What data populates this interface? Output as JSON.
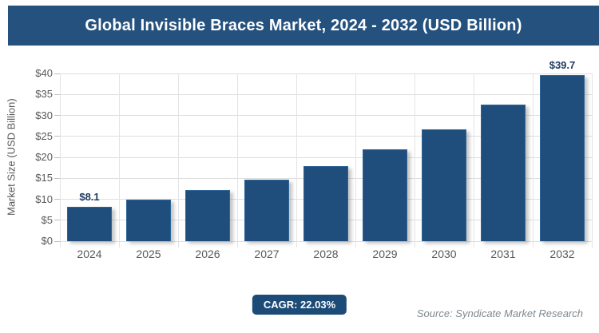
{
  "header": {
    "title": "Global Invisible Braces Market, 2024 - 2032 (USD Billion)"
  },
  "chart_data": {
    "type": "bar",
    "title": "Global Invisible Braces Market, 2024 - 2032 (USD Billion)",
    "categories": [
      "2024",
      "2025",
      "2026",
      "2027",
      "2028",
      "2029",
      "2030",
      "2031",
      "2032"
    ],
    "values": [
      8.1,
      9.9,
      12.1,
      14.7,
      17.9,
      21.9,
      26.7,
      32.6,
      39.7
    ],
    "bar_labels": [
      "$8.1",
      "",
      "",
      "",
      "",
      "",
      "",
      "",
      "$39.7"
    ],
    "xlabel": "",
    "ylabel": "Market Size (USD Billion)",
    "ylim": [
      0,
      40
    ],
    "ytick_step": 5,
    "ytick_prefix": "$",
    "grid": true,
    "legend": "none",
    "bar_color": "#1F4E7C"
  },
  "footer": {
    "cagr_label": "CAGR: 22.03%",
    "source": "Source: Syndicate Market Research"
  },
  "colors": {
    "header_bg": "#25517E",
    "header_text": "#FFFFFF",
    "bar": "#1F4E7C",
    "badge_bg": "#1D4B77",
    "data_label": "#1F3B63",
    "axis_text": "#595959",
    "gridline": "#DEDEDE",
    "source_text": "#7F8A91"
  }
}
